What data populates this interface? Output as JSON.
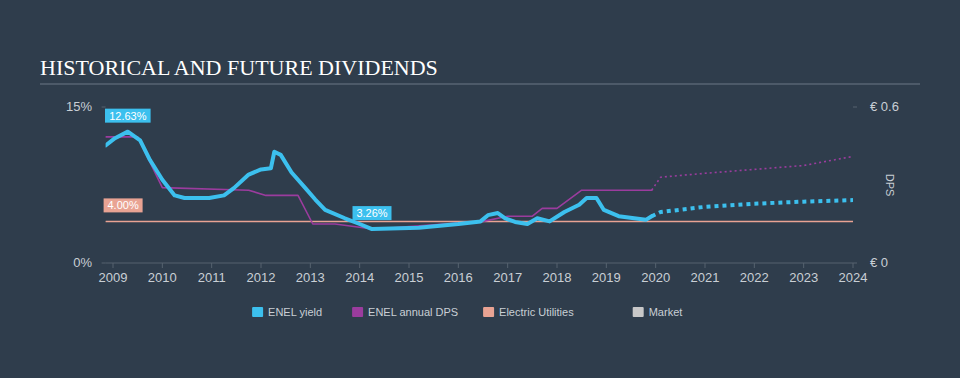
{
  "chart_data": {
    "type": "line",
    "title": "HISTORICAL AND FUTURE DIVIDENDS",
    "y2label": "DPS",
    "xlim": [
      2008.85,
      2024
    ],
    "xticks": [
      2009,
      2010,
      2011,
      2012,
      2013,
      2014,
      2015,
      2016,
      2017,
      2018,
      2019,
      2020,
      2021,
      2022,
      2023,
      2024
    ],
    "ylim": [
      0,
      15
    ],
    "yticks": [
      {
        "value": 0,
        "label": "0%"
      },
      {
        "value": 15,
        "label": "15%"
      }
    ],
    "y2lim": [
      0,
      0.6
    ],
    "y2ticks": [
      {
        "value": 0,
        "label": "€ 0"
      },
      {
        "value": 0.6,
        "label": "€ 0.6"
      }
    ],
    "grid": false,
    "legend": "bottom",
    "series": [
      {
        "name": "ENEL yield",
        "color": "#3cc0ee",
        "line_style": "solid",
        "x": [
          2008.85,
          2009.04,
          2009.3,
          2009.55,
          2009.75,
          2010.0,
          2010.25,
          2010.45,
          2010.95,
          2011.25,
          2011.45,
          2011.75,
          2012.0,
          2012.2,
          2012.27,
          2012.4,
          2012.62,
          2012.9,
          2013.1,
          2013.3,
          2013.7,
          2014.0,
          2014.25,
          2015.2,
          2016.0,
          2016.45,
          2016.6,
          2016.8,
          2016.95,
          2017.15,
          2017.4,
          2017.6,
          2017.85,
          2018.15,
          2018.45,
          2018.6,
          2018.8,
          2018.95,
          2019.25,
          2019.8,
          2019.92
        ],
        "values": [
          11.3,
          12.0,
          12.63,
          11.8,
          9.9,
          8.0,
          6.5,
          6.25,
          6.25,
          6.5,
          7.2,
          8.5,
          9.0,
          9.1,
          10.7,
          10.4,
          8.7,
          7.2,
          6.1,
          5.1,
          4.3,
          3.75,
          3.26,
          3.4,
          3.75,
          4.0,
          4.6,
          4.8,
          4.3,
          3.95,
          3.75,
          4.3,
          4.0,
          4.9,
          5.6,
          6.25,
          6.25,
          5.1,
          4.5,
          4.15,
          4.5
        ]
      },
      {
        "name": "ENEL yield",
        "color": "#3cc0ee",
        "line_style": "dotted",
        "x": [
          2019.92,
          2020.1,
          2021.0,
          2022.0,
          2023.0,
          2024.0
        ],
        "values": [
          4.5,
          4.9,
          5.4,
          5.7,
          5.9,
          6.05
        ]
      },
      {
        "name": "ENEL annual DPS",
        "color": "#9b3c9e",
        "line_style": "solid",
        "axis": "y2",
        "x": [
          2008.85,
          2009.5,
          2010.0,
          2011.75,
          2012.1,
          2012.75,
          2013.05,
          2013.5,
          2014.3,
          2015.0,
          2016.5,
          2017.0,
          2017.5,
          2017.7,
          2018.0,
          2018.5,
          2019.92
        ],
        "values": [
          0.485,
          0.485,
          0.29,
          0.28,
          0.26,
          0.26,
          0.15,
          0.15,
          0.13,
          0.14,
          0.16,
          0.18,
          0.18,
          0.21,
          0.21,
          0.28,
          0.28
        ]
      },
      {
        "name": "ENEL annual DPS",
        "color": "#9b3c9e",
        "line_style": "dotted",
        "axis": "y2",
        "x": [
          2019.92,
          2020.1,
          2021.0,
          2022.0,
          2023.0,
          2024.0
        ],
        "values": [
          0.28,
          0.33,
          0.345,
          0.36,
          0.375,
          0.41
        ]
      },
      {
        "name": "Electric Utilities",
        "color": "#e9a393",
        "line_style": "solid",
        "x": [
          2008.85,
          2024.0
        ],
        "values": [
          4.0,
          4.0
        ]
      },
      {
        "name": "Market",
        "color": "#c8c8c8",
        "line_style": "solid",
        "x": [],
        "values": []
      }
    ],
    "annotations": [
      {
        "text": "12.63%",
        "x": 2009.3,
        "y": 12.63,
        "color": "#3cc0ee"
      },
      {
        "text": "3.26%",
        "x": 2014.25,
        "y": 3.26,
        "color": "#3cc0ee"
      },
      {
        "text": "4.00%",
        "x": 2009.2,
        "y": 4.0,
        "color": "#e9a393"
      }
    ]
  }
}
